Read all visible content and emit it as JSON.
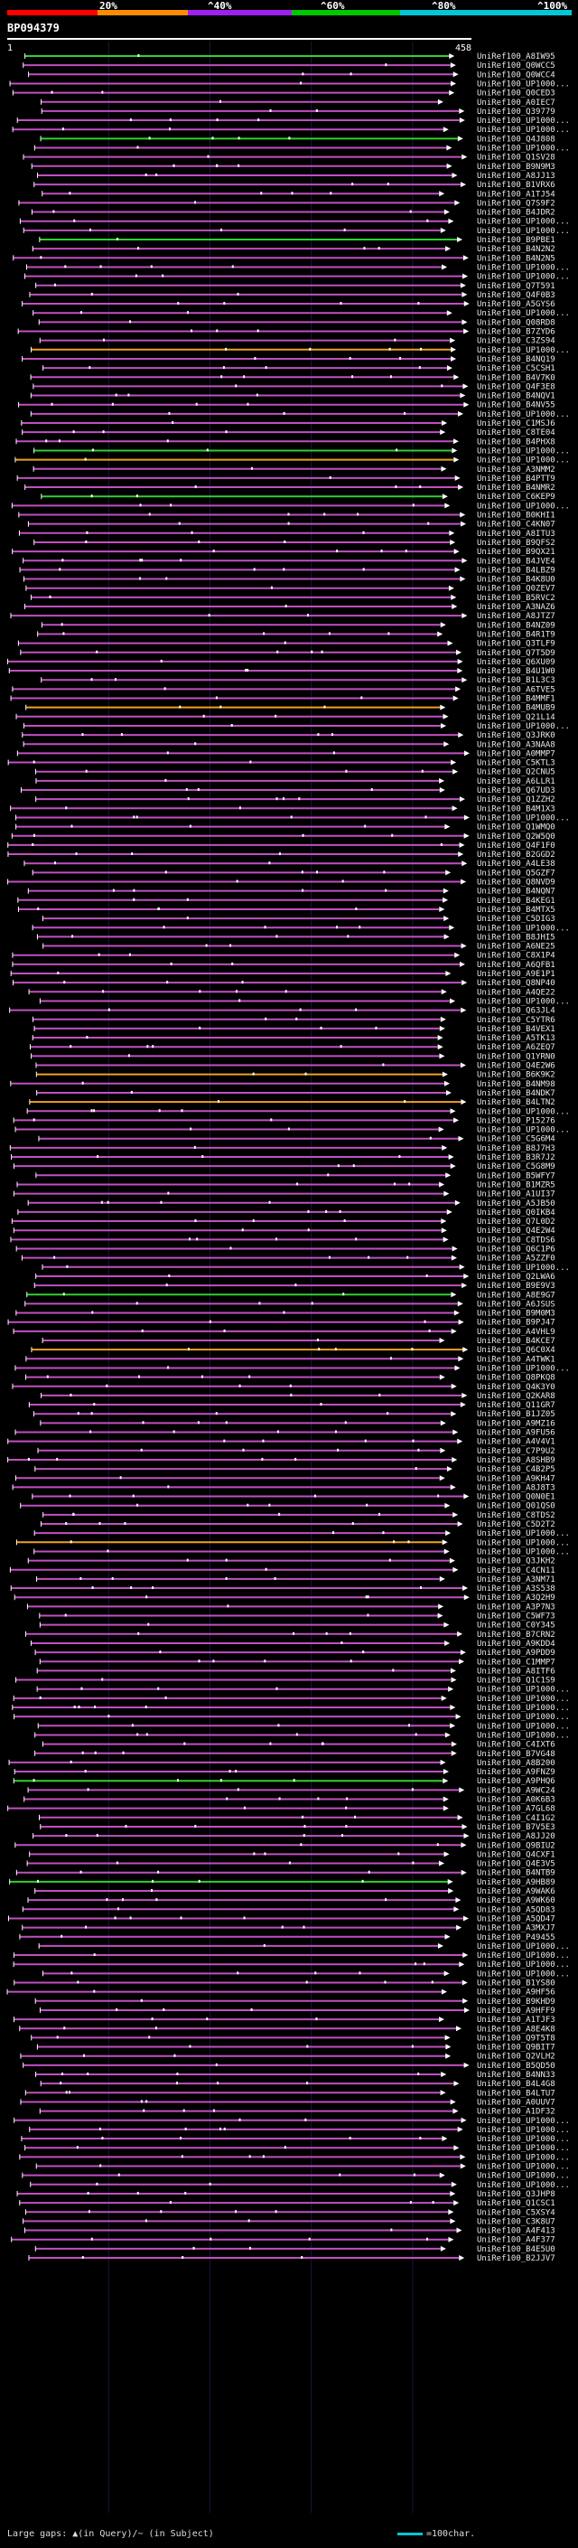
{
  "legend": {
    "labels": [
      "20%",
      "^40%",
      "^60%",
      "^80%",
      "^100%"
    ],
    "colors": [
      "#ff0000",
      "#ff8c00",
      "#a020f0",
      "#00c800",
      "#00c8d8"
    ]
  },
  "query": {
    "id": "BP094379",
    "start": "1",
    "end": "458"
  },
  "footer": {
    "gaps_text": "Large gaps: ▲(in Query)/~ (in Subject)",
    "scale_text": "=100char."
  },
  "colors": {
    "match": "#c050c0",
    "match_green": "#30d030",
    "match_orange": "#f0a020",
    "gap": "#ffffff"
  },
  "chart_data": {
    "type": "alignment-overview",
    "query_length": 458,
    "hits": [
      {
        "id": "UniRef100_A8IW95",
        "color": "green"
      },
      {
        "id": "UniRef100_Q0WCC5",
        "color": "purple"
      },
      {
        "id": "UniRef100_Q0WCC4",
        "color": "purple"
      },
      {
        "id": "UniRef100_UP1000...",
        "color": "purple"
      },
      {
        "id": "UniRef100_Q0CED3",
        "color": "purple"
      },
      {
        "id": "UniRef100_A0IEC7",
        "color": "purple"
      },
      {
        "id": "UniRef100_Q39779",
        "color": "purple"
      },
      {
        "id": "UniRef100_UP1000...",
        "color": "purple"
      },
      {
        "id": "UniRef100_UP1000...",
        "color": "purple"
      },
      {
        "id": "UniRef100_Q4J808",
        "color": "green"
      },
      {
        "id": "UniRef100_UP1000...",
        "color": "purple"
      },
      {
        "id": "UniRef100_Q1SV28",
        "color": "purple"
      },
      {
        "id": "UniRef100_B9N9M3",
        "color": "purple"
      },
      {
        "id": "UniRef100_A8JJ13",
        "color": "purple"
      },
      {
        "id": "UniRef100_B1VRX6",
        "color": "purple"
      },
      {
        "id": "UniRef100_A1TJ54",
        "color": "purple"
      },
      {
        "id": "UniRef100_Q7S9F2",
        "color": "purple"
      },
      {
        "id": "UniRef100_B4JDR2",
        "color": "purple"
      },
      {
        "id": "UniRef100_UP1000...",
        "color": "purple"
      },
      {
        "id": "UniRef100_UP1000...",
        "color": "purple"
      },
      {
        "id": "UniRef100_B9PBE1",
        "color": "green"
      },
      {
        "id": "UniRef100_B4N2N2",
        "color": "purple"
      },
      {
        "id": "UniRef100_B4N2N5",
        "color": "purple"
      },
      {
        "id": "UniRef100_UP1000...",
        "color": "purple"
      },
      {
        "id": "UniRef100_UP1000...",
        "color": "purple"
      },
      {
        "id": "UniRef100_Q7T591",
        "color": "purple"
      },
      {
        "id": "UniRef100_Q4F0B3",
        "color": "purple"
      },
      {
        "id": "UniRef100_A5GYS6",
        "color": "purple"
      },
      {
        "id": "UniRef100_UP1000...",
        "color": "purple"
      },
      {
        "id": "UniRef100_Q08RD8",
        "color": "purple"
      },
      {
        "id": "UniRef100_B7ZYD6",
        "color": "purple"
      },
      {
        "id": "UniRef100_C3ZS94",
        "color": "purple"
      },
      {
        "id": "UniRef100_UP1000...",
        "color": "orange"
      },
      {
        "id": "UniRef100_B4NQ19",
        "color": "purple"
      },
      {
        "id": "UniRef100_C5CSH1",
        "color": "purple"
      },
      {
        "id": "UniRef100_B4V7K0",
        "color": "purple"
      },
      {
        "id": "UniRef100_Q4F3E8",
        "color": "purple"
      },
      {
        "id": "UniRef100_B4NQV1",
        "color": "purple"
      },
      {
        "id": "UniRef100_B4NV55",
        "color": "purple"
      },
      {
        "id": "UniRef100_UP1000...",
        "color": "purple"
      },
      {
        "id": "UniRef100_C1MSJ6",
        "color": "purple"
      },
      {
        "id": "UniRef100_C8TE04",
        "color": "purple"
      },
      {
        "id": "UniRef100_B4PHX8",
        "color": "purple"
      },
      {
        "id": "UniRef100_UP1000...",
        "color": "green"
      },
      {
        "id": "UniRef100_UP1000...",
        "color": "orange"
      },
      {
        "id": "UniRef100_A3NMM2",
        "color": "purple"
      },
      {
        "id": "UniRef100_B4PTT9",
        "color": "purple"
      },
      {
        "id": "UniRef100_B4NMR2",
        "color": "purple"
      },
      {
        "id": "UniRef100_C6KEP9",
        "color": "green"
      },
      {
        "id": "UniRef100_UP1000...",
        "color": "purple"
      },
      {
        "id": "UniRef100_B0KHI1",
        "color": "purple"
      },
      {
        "id": "UniRef100_C4KN07",
        "color": "purple"
      },
      {
        "id": "UniRef100_A8ITU3",
        "color": "purple"
      },
      {
        "id": "UniRef100_B9QFS2",
        "color": "purple"
      },
      {
        "id": "UniRef100_B9QX21",
        "color": "purple"
      },
      {
        "id": "UniRef100_B4JVE4",
        "color": "purple"
      },
      {
        "id": "UniRef100_B4LBZ9",
        "color": "purple"
      },
      {
        "id": "UniRef100_B4K8U0",
        "color": "purple"
      },
      {
        "id": "UniRef100_Q0ZEV7",
        "color": "purple"
      },
      {
        "id": "UniRef100_B5RVC2",
        "color": "purple"
      },
      {
        "id": "UniRef100_A3NAZ6",
        "color": "purple"
      },
      {
        "id": "UniRef100_A8JTZ7",
        "color": "purple"
      },
      {
        "id": "UniRef100_B4NZ09",
        "color": "purple"
      },
      {
        "id": "UniRef100_B4R1T9",
        "color": "purple"
      },
      {
        "id": "UniRef100_Q3TLF9",
        "color": "purple"
      },
      {
        "id": "UniRef100_Q7T5D9",
        "color": "purple"
      },
      {
        "id": "UniRef100_Q6XU09",
        "color": "purple"
      },
      {
        "id": "UniRef100_B4U1W0",
        "color": "purple"
      },
      {
        "id": "UniRef100_B1L3C3",
        "color": "purple"
      },
      {
        "id": "UniRef100_A6TVE5",
        "color": "purple"
      },
      {
        "id": "UniRef100_B4MMF1",
        "color": "purple"
      },
      {
        "id": "UniRef100_B4MUB9",
        "color": "orange"
      },
      {
        "id": "UniRef100_Q21L14",
        "color": "purple"
      },
      {
        "id": "UniRef100_UP1000...",
        "color": "purple"
      },
      {
        "id": "UniRef100_Q3JRK0",
        "color": "purple"
      },
      {
        "id": "UniRef100_A3NAA8",
        "color": "purple"
      },
      {
        "id": "UniRef100_A0MMP7",
        "color": "purple"
      },
      {
        "id": "UniRef100_C5KTL3",
        "color": "purple"
      },
      {
        "id": "UniRef100_Q2CNU5",
        "color": "purple"
      },
      {
        "id": "UniRef100_A6LLR1",
        "color": "purple"
      },
      {
        "id": "UniRef100_Q67UD3",
        "color": "purple"
      },
      {
        "id": "UniRef100_Q1ZZH2",
        "color": "purple"
      },
      {
        "id": "UniRef100_B4M1X3",
        "color": "purple"
      },
      {
        "id": "UniRef100_UP1000...",
        "color": "purple"
      },
      {
        "id": "UniRef100_Q1WMQ0",
        "color": "purple"
      },
      {
        "id": "UniRef100_Q2W5Q0",
        "color": "purple"
      },
      {
        "id": "UniRef100_Q4F1F0",
        "color": "purple"
      },
      {
        "id": "UniRef100_B2GGD2",
        "color": "purple"
      },
      {
        "id": "UniRef100_A4LE38",
        "color": "purple"
      },
      {
        "id": "UniRef100_Q5GZF7",
        "color": "purple"
      },
      {
        "id": "UniRef100_Q8NVD9",
        "color": "purple"
      },
      {
        "id": "UniRef100_B4NQN7",
        "color": "purple"
      },
      {
        "id": "UniRef100_B4KEG1",
        "color": "purple"
      },
      {
        "id": "UniRef100_B4MTX5",
        "color": "purple"
      },
      {
        "id": "UniRef100_C5DIG3",
        "color": "purple"
      },
      {
        "id": "UniRef100_UP1000...",
        "color": "purple"
      },
      {
        "id": "UniRef100_B8JHI5",
        "color": "purple"
      },
      {
        "id": "UniRef100_A6NE25",
        "color": "purple"
      },
      {
        "id": "UniRef100_C8X1P4",
        "color": "purple"
      },
      {
        "id": "UniRef100_A6QFB1",
        "color": "purple"
      },
      {
        "id": "UniRef100_A9E1P1",
        "color": "purple"
      },
      {
        "id": "UniRef100_Q8NP40",
        "color": "purple"
      },
      {
        "id": "UniRef100_A4QE22",
        "color": "purple"
      },
      {
        "id": "UniRef100_UP1000...",
        "color": "purple"
      },
      {
        "id": "UniRef100_Q63JL4",
        "color": "purple"
      },
      {
        "id": "UniRef100_C5YTR6",
        "color": "purple"
      },
      {
        "id": "UniRef100_B4VEX1",
        "color": "purple"
      },
      {
        "id": "UniRef100_A5TK13",
        "color": "purple"
      },
      {
        "id": "UniRef100_A6ZEQ7",
        "color": "purple"
      },
      {
        "id": "UniRef100_Q1YRN0",
        "color": "purple"
      },
      {
        "id": "UniRef100_Q4E2W6",
        "color": "purple"
      },
      {
        "id": "UniRef100_B6K9K2",
        "color": "orange"
      },
      {
        "id": "UniRef100_B4NM98",
        "color": "purple"
      },
      {
        "id": "UniRef100_B4NDK7",
        "color": "purple"
      },
      {
        "id": "UniRef100_B4LTN2",
        "color": "orange"
      },
      {
        "id": "UniRef100_UP1000...",
        "color": "purple"
      },
      {
        "id": "UniRef100_P15276",
        "color": "purple"
      },
      {
        "id": "UniRef100_UP1000...",
        "color": "purple"
      },
      {
        "id": "UniRef100_C5G6M4",
        "color": "purple"
      },
      {
        "id": "UniRef100_B8J7H3",
        "color": "purple"
      },
      {
        "id": "UniRef100_B3R7J2",
        "color": "purple"
      },
      {
        "id": "UniRef100_C5G8M9",
        "color": "purple"
      },
      {
        "id": "UniRef100_B5WFY7",
        "color": "purple"
      },
      {
        "id": "UniRef100_B1MZR5",
        "color": "purple"
      },
      {
        "id": "UniRef100_A1UI37",
        "color": "purple"
      },
      {
        "id": "UniRef100_A5JB50",
        "color": "purple"
      },
      {
        "id": "UniRef100_Q0IKB4",
        "color": "purple"
      },
      {
        "id": "UniRef100_Q7L0D2",
        "color": "purple"
      },
      {
        "id": "UniRef100_Q4E2W4",
        "color": "purple"
      },
      {
        "id": "UniRef100_C8TDS6",
        "color": "purple"
      },
      {
        "id": "UniRef100_Q6C1P6",
        "color": "purple"
      },
      {
        "id": "UniRef100_A5ZZF0",
        "color": "purple"
      },
      {
        "id": "UniRef100_UP1000...",
        "color": "purple"
      },
      {
        "id": "UniRef100_Q2LWA6",
        "color": "purple"
      },
      {
        "id": "UniRef100_B9E9V3",
        "color": "purple"
      },
      {
        "id": "UniRef100_A8E9G7",
        "color": "green"
      },
      {
        "id": "UniRef100_A6JSUS",
        "color": "purple"
      },
      {
        "id": "UniRef100_B9M0M3",
        "color": "purple"
      },
      {
        "id": "UniRef100_B9PJ47",
        "color": "purple"
      },
      {
        "id": "UniRef100_A4VHL9",
        "color": "purple"
      },
      {
        "id": "UniRef100_B4KCE7",
        "color": "purple"
      },
      {
        "id": "UniRef100_Q6C0X4",
        "color": "orange"
      },
      {
        "id": "UniRef100_A4TWK1",
        "color": "purple"
      },
      {
        "id": "UniRef100_UP1000...",
        "color": "purple"
      },
      {
        "id": "UniRef100_Q8PKQ8",
        "color": "purple"
      },
      {
        "id": "UniRef100_Q4K3Y0",
        "color": "purple"
      },
      {
        "id": "UniRef100_Q2KAR8",
        "color": "purple"
      },
      {
        "id": "UniRef100_Q11GR7",
        "color": "purple"
      },
      {
        "id": "UniRef100_B1JZ05",
        "color": "purple"
      },
      {
        "id": "UniRef100_A9MZ16",
        "color": "purple"
      },
      {
        "id": "UniRef100_A9FU56",
        "color": "purple"
      },
      {
        "id": "UniRef100_A4V4V1",
        "color": "purple"
      },
      {
        "id": "UniRef100_C7P9U2",
        "color": "purple"
      },
      {
        "id": "UniRef100_A8SHB9",
        "color": "purple"
      },
      {
        "id": "UniRef100_C4B2P5",
        "color": "purple"
      },
      {
        "id": "UniRef100_A9KH47",
        "color": "purple"
      },
      {
        "id": "UniRef100_A8J8T3",
        "color": "purple"
      },
      {
        "id": "UniRef100_Q0N0E1",
        "color": "purple"
      },
      {
        "id": "UniRef100_Q01QS0",
        "color": "purple"
      },
      {
        "id": "UniRef100_C8TDS2",
        "color": "purple"
      },
      {
        "id": "UniRef100_C5D2T2",
        "color": "purple"
      },
      {
        "id": "UniRef100_UP1000...",
        "color": "purple"
      },
      {
        "id": "UniRef100_UP1000...",
        "color": "orange"
      },
      {
        "id": "UniRef100_UP1000...",
        "color": "purple"
      },
      {
        "id": "UniRef100_Q3JKH2",
        "color": "purple"
      },
      {
        "id": "UniRef100_C4CN11",
        "color": "purple"
      },
      {
        "id": "UniRef100_A3NM71",
        "color": "purple"
      },
      {
        "id": "UniRef100_A3S538",
        "color": "purple"
      },
      {
        "id": "UniRef100_A3Q2H9",
        "color": "purple"
      },
      {
        "id": "UniRef100_A3P7N3",
        "color": "purple"
      },
      {
        "id": "UniRef100_C5WF73",
        "color": "purple"
      },
      {
        "id": "UniRef100_C0Y345",
        "color": "purple"
      },
      {
        "id": "UniRef100_B7CRN2",
        "color": "purple"
      },
      {
        "id": "UniRef100_A9KDD4",
        "color": "purple"
      },
      {
        "id": "UniRef100_A9PDD9",
        "color": "purple"
      },
      {
        "id": "UniRef100_C1MMP7",
        "color": "purple"
      },
      {
        "id": "UniRef100_A8ITF6",
        "color": "purple"
      },
      {
        "id": "UniRef100_Q1C1S9",
        "color": "purple"
      },
      {
        "id": "UniRef100_UP1000...",
        "color": "purple"
      },
      {
        "id": "UniRef100_UP1000...",
        "color": "purple"
      },
      {
        "id": "UniRef100_UP1000...",
        "color": "purple"
      },
      {
        "id": "UniRef100_UP1000...",
        "color": "purple"
      },
      {
        "id": "UniRef100_UP1000...",
        "color": "purple"
      },
      {
        "id": "UniRef100_UP1000...",
        "color": "purple"
      },
      {
        "id": "UniRef100_C4IXT6",
        "color": "purple"
      },
      {
        "id": "UniRef100_B7VG48",
        "color": "purple"
      },
      {
        "id": "UniRef100_A8B200",
        "color": "purple"
      },
      {
        "id": "UniRef100_A9FNZ9",
        "color": "purple"
      },
      {
        "id": "UniRef100_A9PHQ6",
        "color": "green"
      },
      {
        "id": "UniRef100_A9WC24",
        "color": "purple"
      },
      {
        "id": "UniRef100_A0K6B3",
        "color": "purple"
      },
      {
        "id": "UniRef100_A7GL68",
        "color": "purple"
      },
      {
        "id": "UniRef100_C4I1G2",
        "color": "purple"
      },
      {
        "id": "UniRef100_B7V5E3",
        "color": "purple"
      },
      {
        "id": "UniRef100_A8JJ20",
        "color": "purple"
      },
      {
        "id": "UniRef100_Q9BIU2",
        "color": "purple"
      },
      {
        "id": "UniRef100_Q4CXF1",
        "color": "purple"
      },
      {
        "id": "UniRef100_Q4E3V5",
        "color": "purple"
      },
      {
        "id": "UniRef100_B4NTB9",
        "color": "purple"
      },
      {
        "id": "UniRef100_A9HB89",
        "color": "green"
      },
      {
        "id": "UniRef100_A9WAK6",
        "color": "purple"
      },
      {
        "id": "UniRef100_A9WK60",
        "color": "purple"
      },
      {
        "id": "UniRef100_A5QD83",
        "color": "purple"
      },
      {
        "id": "UniRef100_A5QD47",
        "color": "purple"
      },
      {
        "id": "UniRef100_A3MXJ7",
        "color": "purple"
      },
      {
        "id": "UniRef100_P49455",
        "color": "purple"
      },
      {
        "id": "UniRef100_UP1000...",
        "color": "purple"
      },
      {
        "id": "UniRef100_UP1000...",
        "color": "purple"
      },
      {
        "id": "UniRef100_UP1000...",
        "color": "purple"
      },
      {
        "id": "UniRef100_UP1000...",
        "color": "purple"
      },
      {
        "id": "UniRef100_B1YS80",
        "color": "purple"
      },
      {
        "id": "UniRef100_A9HF56",
        "color": "purple"
      },
      {
        "id": "UniRef100_B9KHD9",
        "color": "purple"
      },
      {
        "id": "UniRef100_A9HFF9",
        "color": "purple"
      },
      {
        "id": "UniRef100_A1TJF3",
        "color": "purple"
      },
      {
        "id": "UniRef100_A8E4K8",
        "color": "purple"
      },
      {
        "id": "UniRef100_Q9T5T8",
        "color": "purple"
      },
      {
        "id": "UniRef100_Q9BIT7",
        "color": "purple"
      },
      {
        "id": "UniRef100_Q2VLH2",
        "color": "purple"
      },
      {
        "id": "UniRef100_B5QD50",
        "color": "purple"
      },
      {
        "id": "UniRef100_B4NN33",
        "color": "purple"
      },
      {
        "id": "UniRef100_B4L4G8",
        "color": "purple"
      },
      {
        "id": "UniRef100_B4LTU7",
        "color": "purple"
      },
      {
        "id": "UniRef100_A0UUV7",
        "color": "purple"
      },
      {
        "id": "UniRef100_A1DF32",
        "color": "purple"
      },
      {
        "id": "UniRef100_UP1000...",
        "color": "purple"
      },
      {
        "id": "UniRef100_UP1000...",
        "color": "purple"
      },
      {
        "id": "UniRef100_UP1000...",
        "color": "purple"
      },
      {
        "id": "UniRef100_UP1000...",
        "color": "purple"
      },
      {
        "id": "UniRef100_UP1000...",
        "color": "purple"
      },
      {
        "id": "UniRef100_UP1000...",
        "color": "purple"
      },
      {
        "id": "UniRef100_UP1000...",
        "color": "purple"
      },
      {
        "id": "UniRef100_UP1000...",
        "color": "purple"
      },
      {
        "id": "UniRef100_Q3JHP8",
        "color": "purple"
      },
      {
        "id": "UniRef100_Q1CSC1",
        "color": "purple"
      },
      {
        "id": "UniRef100_C5XSY4",
        "color": "purple"
      },
      {
        "id": "UniRef100_C3K8U7",
        "color": "purple"
      },
      {
        "id": "UniRef100_A4F413",
        "color": "purple"
      },
      {
        "id": "UniRef100_A4F377",
        "color": "purple"
      },
      {
        "id": "UniRef100_B4E5U0",
        "color": "purple"
      },
      {
        "id": "UniRef100_B2JJV7",
        "color": "purple"
      }
    ]
  }
}
